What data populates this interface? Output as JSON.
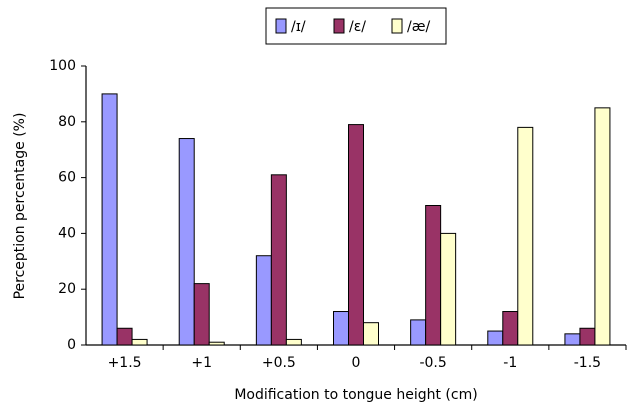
{
  "chart_data": {
    "type": "bar",
    "y_label": "Perception percentage (%)",
    "x_label": "Modification to tongue height (cm)",
    "categories": [
      "+1.5",
      "+1",
      "+0.5",
      "0",
      "-0.5",
      "-1",
      "-1.5"
    ],
    "series": [
      {
        "name": "/ɪ/",
        "color": "#9999ff",
        "values": [
          90,
          74,
          32,
          12,
          9,
          5,
          4
        ]
      },
      {
        "name": "/ɛ/",
        "color": "#993366",
        "values": [
          6,
          22,
          61,
          79,
          50,
          12,
          6
        ]
      },
      {
        "name": "/æ/",
        "color": "#ffffcc",
        "values": [
          2,
          1,
          2,
          8,
          40,
          78,
          85
        ]
      }
    ],
    "ylim": [
      0,
      100
    ],
    "yticks": [
      0,
      20,
      40,
      60,
      80,
      100
    ],
    "grid": false
  }
}
